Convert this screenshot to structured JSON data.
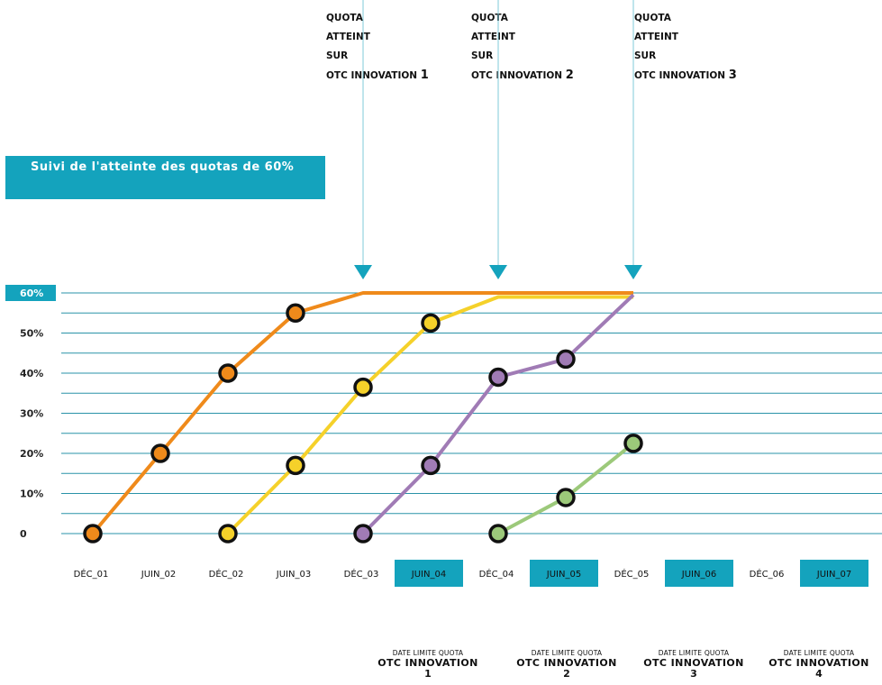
{
  "chart_data": {
    "type": "line",
    "title": "Suivi de l'atteinte des quotas de 60%",
    "categories": [
      "DÉC_01",
      "JUIN_02",
      "DÉC_02",
      "JUIN_03",
      "DÉC_03",
      "JUIN_04",
      "DÉC_04",
      "JUIN_05",
      "DÉC_05",
      "JUIN_06",
      "DÉC_06",
      "JUIN_07"
    ],
    "highlighted_categories": [
      "JUIN_04",
      "JUIN_05",
      "JUIN_06",
      "JUIN_07"
    ],
    "y_tick_labels": [
      "0",
      "10%",
      "20%",
      "30%",
      "40%",
      "50%",
      "60%"
    ],
    "ylim": [
      0,
      60
    ],
    "grid": true,
    "series": [
      {
        "color": "#ef8a1b",
        "points": [
          {
            "x": "DÉC_01",
            "y": 0
          },
          {
            "x": "JUIN_02",
            "y": 20
          },
          {
            "x": "DÉC_02",
            "y": 40
          },
          {
            "x": "JUIN_03",
            "y": 55
          },
          {
            "x": "DÉC_03",
            "y": 60
          },
          {
            "x": "DÉC_05",
            "y": 60
          }
        ],
        "markers": [
          true,
          true,
          true,
          true,
          false,
          false
        ]
      },
      {
        "color": "#f5d12a",
        "points": [
          {
            "x": "DÉC_02",
            "y": 0
          },
          {
            "x": "JUIN_03",
            "y": 17
          },
          {
            "x": "DÉC_03",
            "y": 36.5
          },
          {
            "x": "JUIN_04",
            "y": 52.5
          },
          {
            "x": "DÉC_04",
            "y": 59
          },
          {
            "x": "DÉC_05",
            "y": 59
          }
        ],
        "markers": [
          true,
          true,
          true,
          true,
          false,
          false
        ]
      },
      {
        "color": "#a07bb5",
        "points": [
          {
            "x": "DÉC_03",
            "y": 0
          },
          {
            "x": "JUIN_04",
            "y": 17
          },
          {
            "x": "DÉC_04",
            "y": 39
          },
          {
            "x": "JUIN_05",
            "y": 43.5
          },
          {
            "x": "DÉC_05",
            "y": 59.5
          }
        ],
        "markers": [
          true,
          true,
          true,
          true,
          false
        ]
      },
      {
        "color": "#9cc97a",
        "points": [
          {
            "x": "DÉC_04",
            "y": 0
          },
          {
            "x": "JUIN_05",
            "y": 9
          },
          {
            "x": "DÉC_05",
            "y": 22.5
          }
        ],
        "markers": [
          true,
          true,
          true
        ]
      }
    ],
    "annotations": [
      {
        "lines": [
          "QUOTA",
          "ATTEINT",
          "SUR",
          "OTC INNOVATION"
        ],
        "number": "1",
        "x": "DÉC_03"
      },
      {
        "lines": [
          "QUOTA",
          "ATTEINT",
          "SUR",
          "OTC INNOVATION"
        ],
        "number": "2",
        "x": "DÉC_04"
      },
      {
        "lines": [
          "QUOTA",
          "ATTEINT",
          "SUR",
          "OTC INNOVATION"
        ],
        "number": "3",
        "x": "DÉC_05"
      }
    ],
    "deadlines": [
      {
        "top": "DATE LIMITE QUOTA",
        "label": "OTC INNOVATION",
        "number": "1"
      },
      {
        "top": "DATE LIMITE QUOTA",
        "label": "OTC INNOVATION",
        "number": "2"
      },
      {
        "top": "DATE LIMITE QUOTA",
        "label": "OTC INNOVATION",
        "number": "3"
      },
      {
        "top": "DATE LIMITE QUOTA",
        "label": "OTC INNOVATION",
        "number": "4"
      }
    ]
  },
  "colors": {
    "accent": "#14a3bd",
    "gridline": "#2a93a8",
    "marker_outline": "#111111"
  }
}
